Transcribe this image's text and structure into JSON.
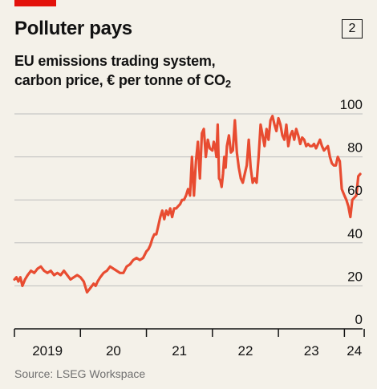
{
  "header": {
    "title": "Polluter pays",
    "chart_number": "2",
    "subtitle_line1": "EU emissions trading system,",
    "subtitle_line2_main": "carbon price, € per tonne of CO",
    "subtitle_line2_sub": "2"
  },
  "footer": {
    "source": "Source: LSEG Workspace"
  },
  "colors": {
    "line": "#e84c31",
    "accent": "#e3120b",
    "grid": "#bdbdbd",
    "axis": "#121212",
    "background": "#f4f1e9"
  },
  "chart_data": {
    "type": "line",
    "title": "Polluter pays",
    "ylabel": "carbon price, € per tonne of CO2",
    "xlabel": "",
    "ylim": [
      0,
      100
    ],
    "yticks": [
      0,
      20,
      40,
      60,
      80,
      100
    ],
    "xlim": [
      2019,
      2024.3
    ],
    "xtick_positions": [
      2019,
      2020,
      2021,
      2022,
      2023,
      2024
    ],
    "xtick_labels": [
      "2019",
      "20",
      "21",
      "22",
      "23",
      "24"
    ],
    "grid": true,
    "series": [
      {
        "name": "",
        "x": [
          2019.0,
          2019.03,
          2019.06,
          2019.09,
          2019.12,
          2019.16,
          2019.2,
          2019.25,
          2019.3,
          2019.35,
          2019.4,
          2019.45,
          2019.5,
          2019.55,
          2019.6,
          2019.65,
          2019.7,
          2019.75,
          2019.8,
          2019.85,
          2019.9,
          2019.95,
          2020.0,
          2020.05,
          2020.1,
          2020.15,
          2020.2,
          2020.23,
          2020.26,
          2020.3,
          2020.35,
          2020.4,
          2020.45,
          2020.5,
          2020.55,
          2020.6,
          2020.65,
          2020.7,
          2020.75,
          2020.8,
          2020.85,
          2020.9,
          2020.95,
          2021.0,
          2021.03,
          2021.06,
          2021.09,
          2021.12,
          2021.15,
          2021.18,
          2021.21,
          2021.24,
          2021.27,
          2021.3,
          2021.33,
          2021.36,
          2021.39,
          2021.42,
          2021.45,
          2021.48,
          2021.51,
          2021.54,
          2021.57,
          2021.6,
          2021.63,
          2021.66,
          2021.69,
          2021.72,
          2021.75,
          2021.78,
          2021.81,
          2021.84,
          2021.87,
          2021.9,
          2021.93,
          2021.96,
          2022.0,
          2022.02,
          2022.04,
          2022.06,
          2022.08,
          2022.1,
          2022.12,
          2022.14,
          2022.16,
          2022.18,
          2022.2,
          2022.22,
          2022.25,
          2022.28,
          2022.31,
          2022.34,
          2022.37,
          2022.4,
          2022.43,
          2022.46,
          2022.49,
          2022.52,
          2022.55,
          2022.58,
          2022.61,
          2022.64,
          2022.67,
          2022.7,
          2022.73,
          2022.76,
          2022.79,
          2022.82,
          2022.85,
          2022.88,
          2022.91,
          2022.94,
          2022.97,
          2023.0,
          2023.03,
          2023.06,
          2023.09,
          2023.12,
          2023.15,
          2023.18,
          2023.21,
          2023.24,
          2023.27,
          2023.3,
          2023.33,
          2023.36,
          2023.39,
          2023.42,
          2023.45,
          2023.48,
          2023.51,
          2023.54,
          2023.57,
          2023.6,
          2023.63,
          2023.66,
          2023.69,
          2023.72,
          2023.75,
          2023.78,
          2023.81,
          2023.84,
          2023.87,
          2023.9,
          2023.93,
          2023.96,
          2024.0,
          2024.03,
          2024.06,
          2024.09,
          2024.12,
          2024.15,
          2024.18,
          2024.21,
          2024.24
        ],
        "y": [
          23,
          24,
          22,
          24,
          20,
          23,
          25,
          27,
          26,
          28,
          29,
          27,
          26,
          27,
          25,
          26,
          25,
          27,
          25,
          23,
          24,
          25,
          24,
          22,
          17,
          19,
          21,
          20,
          22,
          24,
          26,
          27,
          29,
          28,
          27,
          26,
          26,
          29,
          30,
          32,
          33,
          32,
          33,
          36,
          37,
          39,
          42,
          44,
          44,
          48,
          52,
          55,
          51,
          55,
          53,
          56,
          52,
          56,
          56,
          57,
          58,
          60,
          60,
          62,
          65,
          62,
          80,
          62,
          78,
          87,
          70,
          91,
          93,
          80,
          88,
          84,
          83,
          87,
          85,
          80,
          95,
          70,
          69,
          66,
          72,
          80,
          75,
          85,
          90,
          82,
          83,
          97,
          82,
          75,
          70,
          68,
          72,
          76,
          88,
          75,
          68,
          70,
          68,
          80,
          95,
          90,
          85,
          93,
          88,
          97,
          99,
          95,
          92,
          98,
          95,
          90,
          88,
          95,
          85,
          90,
          92,
          88,
          93,
          90,
          86,
          89,
          88,
          85,
          86,
          85,
          85,
          86,
          84,
          86,
          88,
          85,
          83,
          84,
          85,
          80,
          77,
          76,
          76,
          80,
          78,
          65,
          62,
          60,
          57,
          52,
          60,
          61,
          62,
          71,
          72
        ]
      }
    ]
  }
}
